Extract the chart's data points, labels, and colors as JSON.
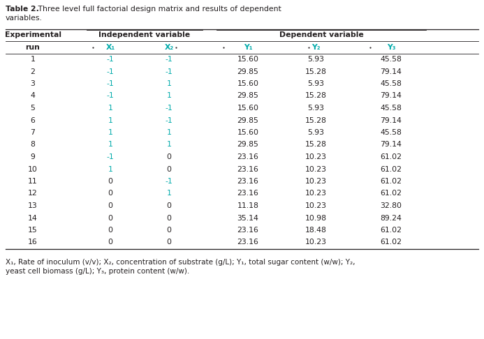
{
  "title_bold": "Table 2.",
  "title_rest": " Three level full factorial design matrix and results of dependent",
  "title_line2": "variables.",
  "rows": [
    [
      1,
      -1,
      -1,
      "15.60",
      "5.93",
      "45.58"
    ],
    [
      2,
      -1,
      -1,
      "29.85",
      "15.28",
      "79.14"
    ],
    [
      3,
      -1,
      1,
      "15.60",
      "5.93",
      "45.58"
    ],
    [
      4,
      -1,
      1,
      "29.85",
      "15.28",
      "79.14"
    ],
    [
      5,
      1,
      -1,
      "15.60",
      "5.93",
      "45.58"
    ],
    [
      6,
      1,
      -1,
      "29.85",
      "15.28",
      "79.14"
    ],
    [
      7,
      1,
      1,
      "15.60",
      "5.93",
      "45.58"
    ],
    [
      8,
      1,
      1,
      "29.85",
      "15.28",
      "79.14"
    ],
    [
      9,
      -1,
      0,
      "23.16",
      "10.23",
      "61.02"
    ],
    [
      10,
      1,
      0,
      "23.16",
      "10.23",
      "61.02"
    ],
    [
      11,
      0,
      -1,
      "23.16",
      "10.23",
      "61.02"
    ],
    [
      12,
      0,
      1,
      "23.16",
      "10.23",
      "61.02"
    ],
    [
      13,
      0,
      0,
      "11.18",
      "10.23",
      "32.80"
    ],
    [
      14,
      0,
      0,
      "35.14",
      "10.98",
      "89.24"
    ],
    [
      15,
      0,
      0,
      "23.16",
      "18.48",
      "61.02"
    ],
    [
      16,
      0,
      0,
      "23.16",
      "10.23",
      "61.02"
    ]
  ],
  "cyan_color": "#00AAAA",
  "black_color": "#231F20",
  "bg_color": "#ffffff",
  "font_size": 7.8
}
